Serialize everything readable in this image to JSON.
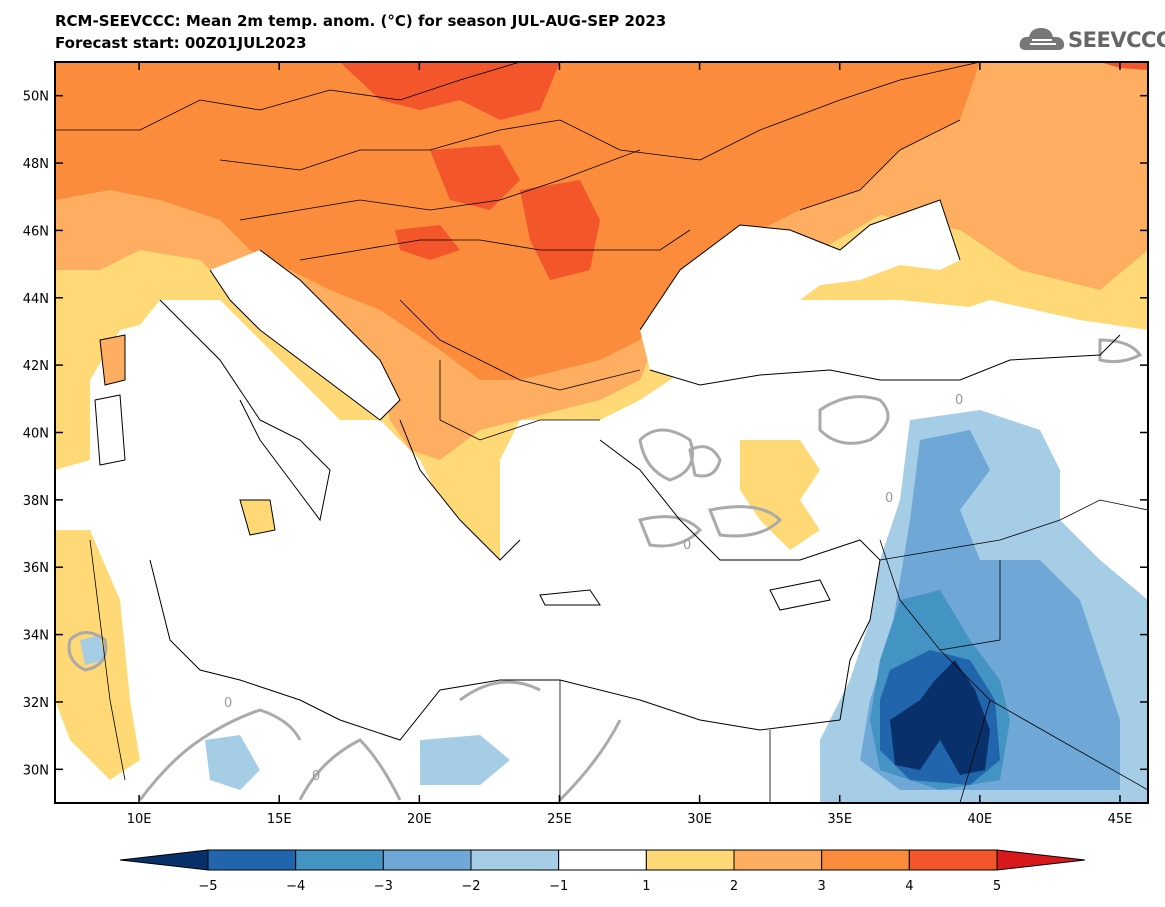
{
  "title": "RCM-SEEVCCC: Mean 2m temp. anom. (°C) for season JUL-AUG-SEP 2023",
  "subtitle": "Forecast start: 00Z01JUL2023",
  "logo_text": "SEEVCCC",
  "axes": {
    "lon_ticks": [
      "10E",
      "15E",
      "20E",
      "25E",
      "30E",
      "35E",
      "40E",
      "45E"
    ],
    "lon_values": [
      10,
      15,
      20,
      25,
      30,
      35,
      40,
      45
    ],
    "lat_ticks": [
      "30N",
      "32N",
      "34N",
      "36N",
      "38N",
      "40N",
      "42N",
      "44N",
      "46N",
      "48N",
      "50N"
    ],
    "lat_values": [
      30,
      32,
      34,
      36,
      38,
      40,
      42,
      44,
      46,
      48,
      50
    ],
    "lon_range": [
      7,
      46
    ],
    "lat_range": [
      29,
      51
    ]
  },
  "contour_label": "0",
  "colorbar": {
    "labels": [
      "−5",
      "−4",
      "−3",
      "−2",
      "−1",
      "1",
      "2",
      "3",
      "4",
      "5"
    ],
    "colors": [
      "#08306b",
      "#2166ac",
      "#4393c3",
      "#6fa8d6",
      "#a6cde6",
      "#ffffff",
      "#fed976",
      "#fdae61",
      "#fb8c3c",
      "#f4562c",
      "#d7191c"
    ]
  },
  "colors": {
    "dark_red": "#f4562c",
    "red_orange": "#fb8c3c",
    "orange": "#fdae61",
    "yellow": "#fed976",
    "light_blue": "#a6cde6",
    "mid_blue": "#6fa8d6",
    "blue": "#4393c3",
    "dark_blue": "#2166ac",
    "navy": "#08306b",
    "contour": "#aaaaaa"
  }
}
